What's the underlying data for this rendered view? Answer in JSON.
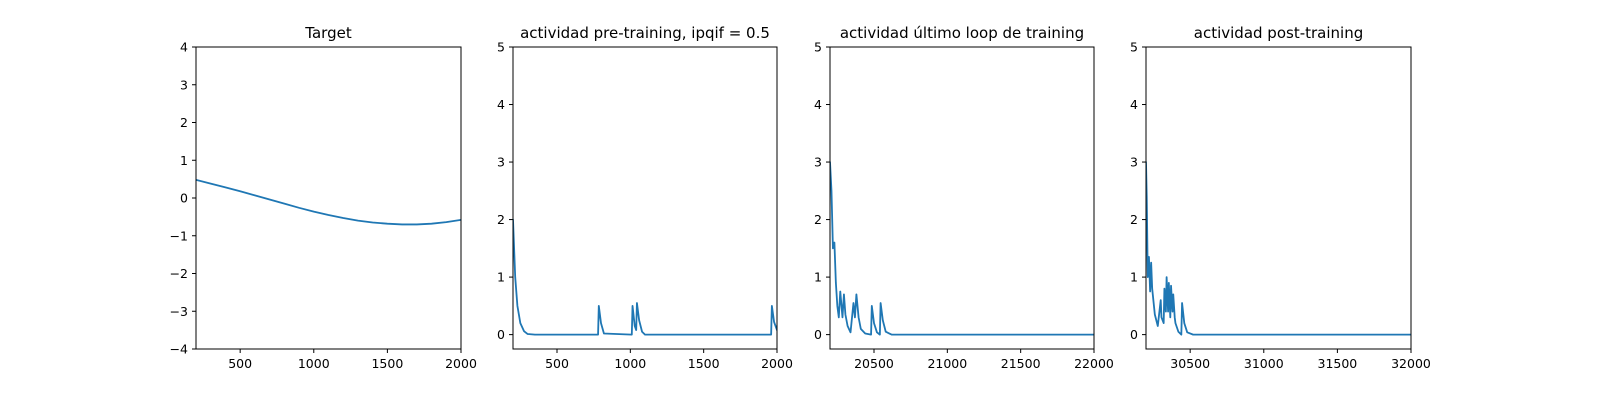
{
  "chart_data": [
    {
      "type": "line",
      "title": "Target",
      "xlim": [
        200,
        2000
      ],
      "ylim": [
        -4,
        4
      ],
      "xticks": [
        500,
        1000,
        1500,
        2000
      ],
      "xtick_labels": [
        "500",
        "1000",
        "1500",
        "2000"
      ],
      "yticks": [
        -4,
        -3,
        -2,
        -1,
        0,
        1,
        2,
        3,
        4
      ],
      "ytick_labels": [
        "−4",
        "−3",
        "−2",
        "−1",
        "0",
        "1",
        "2",
        "3",
        "4"
      ],
      "grid": false,
      "series": [
        {
          "color": "#1f77b4",
          "x": [
            200,
            300,
            400,
            500,
            600,
            700,
            800,
            900,
            1000,
            1100,
            1200,
            1300,
            1400,
            1500,
            1600,
            1700,
            1800,
            1900,
            2000
          ],
          "y": [
            0.48,
            0.38,
            0.28,
            0.18,
            0.07,
            -0.04,
            -0.15,
            -0.26,
            -0.36,
            -0.45,
            -0.53,
            -0.6,
            -0.65,
            -0.68,
            -0.7,
            -0.7,
            -0.68,
            -0.64,
            -0.58
          ]
        }
      ]
    },
    {
      "type": "line",
      "title": "actividad pre-training, ipqif = 0.5",
      "xlim": [
        200,
        2000
      ],
      "ylim": [
        -0.25,
        5
      ],
      "xticks": [
        500,
        1000,
        1500,
        2000
      ],
      "xtick_labels": [
        "500",
        "1000",
        "1500",
        "2000"
      ],
      "yticks": [
        0,
        1,
        2,
        3,
        4,
        5
      ],
      "ytick_labels": [
        "0",
        "1",
        "2",
        "3",
        "4",
        "5"
      ],
      "grid": false,
      "series": [
        {
          "color": "#1f77b4",
          "x": [
            200,
            215,
            230,
            250,
            275,
            300,
            350,
            780,
            785,
            800,
            820,
            1010,
            1015,
            1030,
            1040,
            1045,
            1060,
            1080,
            1100,
            1960,
            1965,
            1980,
            2000
          ],
          "y": [
            2.0,
            1.0,
            0.5,
            0.2,
            0.06,
            0.01,
            0.0,
            0.0,
            0.5,
            0.2,
            0.02,
            0.0,
            0.5,
            0.15,
            0.08,
            0.55,
            0.25,
            0.05,
            0.0,
            0.0,
            0.5,
            0.22,
            0.08
          ]
        }
      ]
    },
    {
      "type": "line",
      "title": "actividad último loop de training",
      "xlim": [
        20200,
        22000
      ],
      "ylim": [
        -0.25,
        5
      ],
      "xticks": [
        20500,
        21000,
        21500,
        22000
      ],
      "xtick_labels": [
        "20500",
        "21000",
        "21500",
        "22000"
      ],
      "yticks": [
        0,
        1,
        2,
        3,
        4,
        5
      ],
      "ytick_labels": [
        "0",
        "1",
        "2",
        "3",
        "4",
        "5"
      ],
      "grid": false,
      "series": [
        {
          "color": "#1f77b4",
          "x": [
            20200,
            20210,
            20220,
            20230,
            20240,
            20250,
            20260,
            20270,
            20275,
            20285,
            20295,
            20305,
            20320,
            20340,
            20360,
            20370,
            20380,
            20395,
            20410,
            20440,
            20480,
            20485,
            20500,
            20520,
            20540,
            20545,
            20560,
            20580,
            20620,
            22000
          ],
          "y": [
            3.0,
            2.5,
            1.5,
            1.6,
            0.9,
            0.5,
            0.3,
            0.75,
            0.6,
            0.3,
            0.7,
            0.35,
            0.15,
            0.04,
            0.55,
            0.3,
            0.7,
            0.3,
            0.1,
            0.02,
            0.0,
            0.5,
            0.2,
            0.04,
            0.0,
            0.55,
            0.25,
            0.05,
            0.0,
            0.0
          ]
        }
      ]
    },
    {
      "type": "line",
      "title": "actividad post-training",
      "xlim": [
        30200,
        32000
      ],
      "ylim": [
        -0.25,
        5
      ],
      "xticks": [
        30500,
        31000,
        31500,
        32000
      ],
      "xtick_labels": [
        "30500",
        "31000",
        "31500",
        "32000"
      ],
      "yticks": [
        0,
        1,
        2,
        3,
        4,
        5
      ],
      "ytick_labels": [
        "0",
        "1",
        "2",
        "3",
        "4",
        "5"
      ],
      "grid": false,
      "series": [
        {
          "color": "#1f77b4",
          "x": [
            30200,
            30205,
            30212,
            30220,
            30228,
            30235,
            30242,
            30250,
            30260,
            30280,
            30300,
            30305,
            30320,
            30325,
            30335,
            30340,
            30350,
            30355,
            30365,
            30370,
            30380,
            30385,
            30395,
            30400,
            30420,
            30440,
            30445,
            30460,
            30480,
            30520,
            32000
          ],
          "y": [
            3.0,
            2.4,
            1.0,
            1.35,
            0.75,
            1.25,
            0.8,
            0.6,
            0.35,
            0.15,
            0.6,
            0.3,
            0.2,
            0.8,
            0.4,
            1.0,
            0.4,
            0.9,
            0.3,
            0.85,
            0.4,
            0.7,
            0.3,
            0.2,
            0.05,
            0.0,
            0.55,
            0.2,
            0.04,
            0.0,
            0.0
          ]
        }
      ]
    }
  ]
}
